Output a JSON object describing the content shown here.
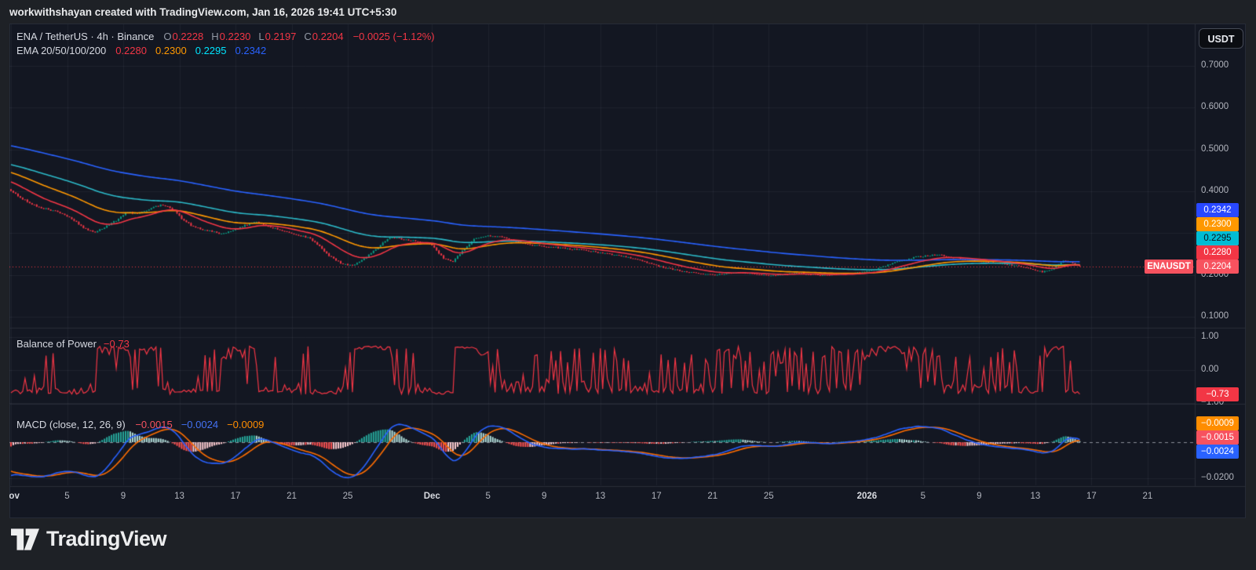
{
  "header": {
    "attribution": "workwithshayan created with TradingView.com, Jan 16, 2026 19:41 UTC+5:30"
  },
  "toolbar": {
    "currency_button": "USDT"
  },
  "legend": {
    "title": "ENA / TetherUS · 4h · Binance",
    "ohlc": [
      {
        "label": "O",
        "value": "0.2228"
      },
      {
        "label": "H",
        "value": "0.2230"
      },
      {
        "label": "L",
        "value": "0.2197"
      },
      {
        "label": "C",
        "value": "0.2204"
      }
    ],
    "change": "−0.0025 (−1.12%)",
    "value_color": "#f23645",
    "ema_title": "EMA 20/50/100/200",
    "ema_values": [
      {
        "text": "0.2280",
        "color": "#f23645"
      },
      {
        "text": "0.2300",
        "color": "#ff9800"
      },
      {
        "text": "0.2295",
        "color": "#00e5ff"
      },
      {
        "text": "0.2342",
        "color": "#2962ff"
      }
    ]
  },
  "bop": {
    "title": "Balance of Power",
    "value": "−0.73",
    "value_color": "#f23645"
  },
  "macd": {
    "title": "MACD (close, 12, 26, 9)",
    "values": [
      {
        "text": "−0.0015",
        "color": "#f7525f"
      },
      {
        "text": "−0.0024",
        "color": "#4472f5"
      },
      {
        "text": "−0.0009",
        "color": "#ff8d00"
      }
    ]
  },
  "axes": {
    "price_labels": [
      {
        "text": "0.7000",
        "value": 0.7
      },
      {
        "text": "0.6000",
        "value": 0.6
      },
      {
        "text": "0.5000",
        "value": 0.5
      },
      {
        "text": "0.4000",
        "value": 0.4
      },
      {
        "text": "0.2000",
        "value": 0.2
      },
      {
        "text": "0.1000",
        "value": 0.1
      }
    ],
    "price_tags": [
      {
        "text": "0.2342",
        "bg": "#2948ff",
        "fg": "#ffffff"
      },
      {
        "text": "0.2300",
        "bg": "#ff9800",
        "fg": "#ffffff"
      },
      {
        "text": "0.2295",
        "bg": "#00bcd4",
        "fg": "#0c121c"
      },
      {
        "text": "0.2280",
        "bg": "#f23645",
        "fg": "#ffffff"
      }
    ],
    "last_price": {
      "symbol": "ENAUSDT",
      "text": "0.2204",
      "bg": "#f7525f",
      "fg": "#ffffff",
      "value": 0.2204
    },
    "bop_labels": [
      {
        "text": "1.00",
        "value": 1
      },
      {
        "text": "0.00",
        "value": 0
      },
      {
        "text": "−1.00",
        "value": -1
      }
    ],
    "bop_tag": {
      "text": "−0.73",
      "bg": "#f23645",
      "fg": "#ffffff",
      "value": -0.73
    },
    "macd_labels": [
      {
        "text": "−0.0200",
        "value": -0.02
      }
    ],
    "macd_tags": [
      {
        "text": "−0.0009",
        "bg": "#ff8d00",
        "fg": "#ffffff"
      },
      {
        "text": "−0.0015",
        "bg": "#f7525f",
        "fg": "#ffffff"
      },
      {
        "text": "−0.0024",
        "bg": "#2962ff",
        "fg": "#ffffff"
      }
    ],
    "time_ticks": [
      {
        "label": "Nov",
        "day": 0,
        "major": true
      },
      {
        "label": "5",
        "day": 4
      },
      {
        "label": "9",
        "day": 8
      },
      {
        "label": "13",
        "day": 12
      },
      {
        "label": "17",
        "day": 16
      },
      {
        "label": "21",
        "day": 20
      },
      {
        "label": "25",
        "day": 24
      },
      {
        "label": "Dec",
        "day": 30,
        "major": true
      },
      {
        "label": "5",
        "day": 34
      },
      {
        "label": "9",
        "day": 38
      },
      {
        "label": "13",
        "day": 42
      },
      {
        "label": "17",
        "day": 46
      },
      {
        "label": "21",
        "day": 50
      },
      {
        "label": "25",
        "day": 54
      },
      {
        "label": "2026",
        "day": 61,
        "major": true
      },
      {
        "label": "5",
        "day": 65
      },
      {
        "label": "9",
        "day": 69
      },
      {
        "label": "13",
        "day": 73
      },
      {
        "label": "17",
        "day": 77
      },
      {
        "label": "21",
        "day": 81
      }
    ]
  },
  "footer": {
    "brand": "TradingView"
  },
  "chart_data": {
    "type": "candlestick",
    "title": "ENA / TetherUS · 4h · Binance",
    "symbol": "ENAUSDT",
    "exchange": "Binance",
    "interval": "4h",
    "current_candle": {
      "open": 0.2228,
      "high": 0.223,
      "low": 0.2197,
      "close": 0.2204,
      "change": -0.0025,
      "change_pct": -1.12
    },
    "price_axis_visible_range": [
      0.1,
      0.7
    ],
    "time_axis_visible_range": [
      "Nov 1",
      "Jan 21 2026"
    ],
    "ema": {
      "periods": [
        20,
        50,
        100,
        200
      ],
      "current_values": [
        0.228,
        0.23,
        0.2295,
        0.2342
      ],
      "line_colors": [
        "#f23645",
        "#ff9800",
        "#2cb9c8",
        "#2962ff"
      ],
      "seeds": [
        0.425,
        0.447,
        0.465,
        0.51
      ]
    },
    "balance_of_power": {
      "current": -0.73,
      "range": [
        -1,
        1
      ],
      "line_color": "#f23645"
    },
    "macd_indicator": {
      "params": [
        12,
        26,
        9
      ],
      "macd": -0.0015,
      "signal": -0.0024,
      "histogram": -0.0009,
      "axis_min": -0.02,
      "macd_color": "#2962ff",
      "signal_color": "#ff6d00",
      "hist_colors": {
        "up_grow": "#26a69a",
        "up_fall": "#b2dfdb",
        "dn_grow": "#ff5252",
        "dn_fall": "#ffcdd2"
      },
      "macd_seed": -0.019,
      "signal_seed": -0.0155
    },
    "price_keyframes": [
      [
        0,
        0.4
      ],
      [
        0.7,
        0.385
      ],
      [
        1.5,
        0.368
      ],
      [
        2.5,
        0.358
      ],
      [
        3.5,
        0.348
      ],
      [
        4.5,
        0.33
      ],
      [
        5.3,
        0.31
      ],
      [
        6,
        0.302
      ],
      [
        6.7,
        0.315
      ],
      [
        7.5,
        0.33
      ],
      [
        8.3,
        0.352
      ],
      [
        9,
        0.345
      ],
      [
        10,
        0.36
      ],
      [
        10.8,
        0.368
      ],
      [
        11.5,
        0.358
      ],
      [
        12.3,
        0.33
      ],
      [
        13,
        0.315
      ],
      [
        14,
        0.306
      ],
      [
        15,
        0.298
      ],
      [
        16,
        0.308
      ],
      [
        16.8,
        0.32
      ],
      [
        17.5,
        0.328
      ],
      [
        18.5,
        0.315
      ],
      [
        19.5,
        0.303
      ],
      [
        20.5,
        0.295
      ],
      [
        21.3,
        0.288
      ],
      [
        22,
        0.268
      ],
      [
        22.7,
        0.245
      ],
      [
        23.5,
        0.228
      ],
      [
        24.3,
        0.222
      ],
      [
        25,
        0.235
      ],
      [
        26,
        0.262
      ],
      [
        27,
        0.29
      ],
      [
        28.5,
        0.283
      ],
      [
        30,
        0.272
      ],
      [
        30.8,
        0.24
      ],
      [
        31.5,
        0.232
      ],
      [
        32.3,
        0.262
      ],
      [
        33,
        0.285
      ],
      [
        34,
        0.295
      ],
      [
        35,
        0.29
      ],
      [
        36,
        0.28
      ],
      [
        37,
        0.272
      ],
      [
        39,
        0.265
      ],
      [
        41,
        0.258
      ],
      [
        43,
        0.248
      ],
      [
        44.5,
        0.238
      ],
      [
        45.5,
        0.228
      ],
      [
        46.5,
        0.218
      ],
      [
        48,
        0.208
      ],
      [
        50,
        0.2
      ],
      [
        52,
        0.206
      ],
      [
        54,
        0.198
      ],
      [
        56,
        0.204
      ],
      [
        58,
        0.199
      ],
      [
        60,
        0.204
      ],
      [
        61.5,
        0.212
      ],
      [
        63,
        0.23
      ],
      [
        64.5,
        0.243
      ],
      [
        66,
        0.248
      ],
      [
        67.5,
        0.24
      ],
      [
        69,
        0.232
      ],
      [
        70.5,
        0.227
      ],
      [
        72,
        0.22
      ],
      [
        73.5,
        0.207
      ],
      [
        74.3,
        0.215
      ],
      [
        75,
        0.235
      ],
      [
        75.7,
        0.228
      ],
      [
        76.33,
        0.2204
      ]
    ],
    "candles_per_day": 6,
    "total_days": 76.33,
    "noise_seed": 5,
    "colors": {
      "up": "#089981",
      "down": "#f23645",
      "grid": "rgba(240,243,250,0.055)",
      "separator": "#2a2e39",
      "last_price_line": "#f23645",
      "zero_dash": "#8b8f99"
    }
  }
}
